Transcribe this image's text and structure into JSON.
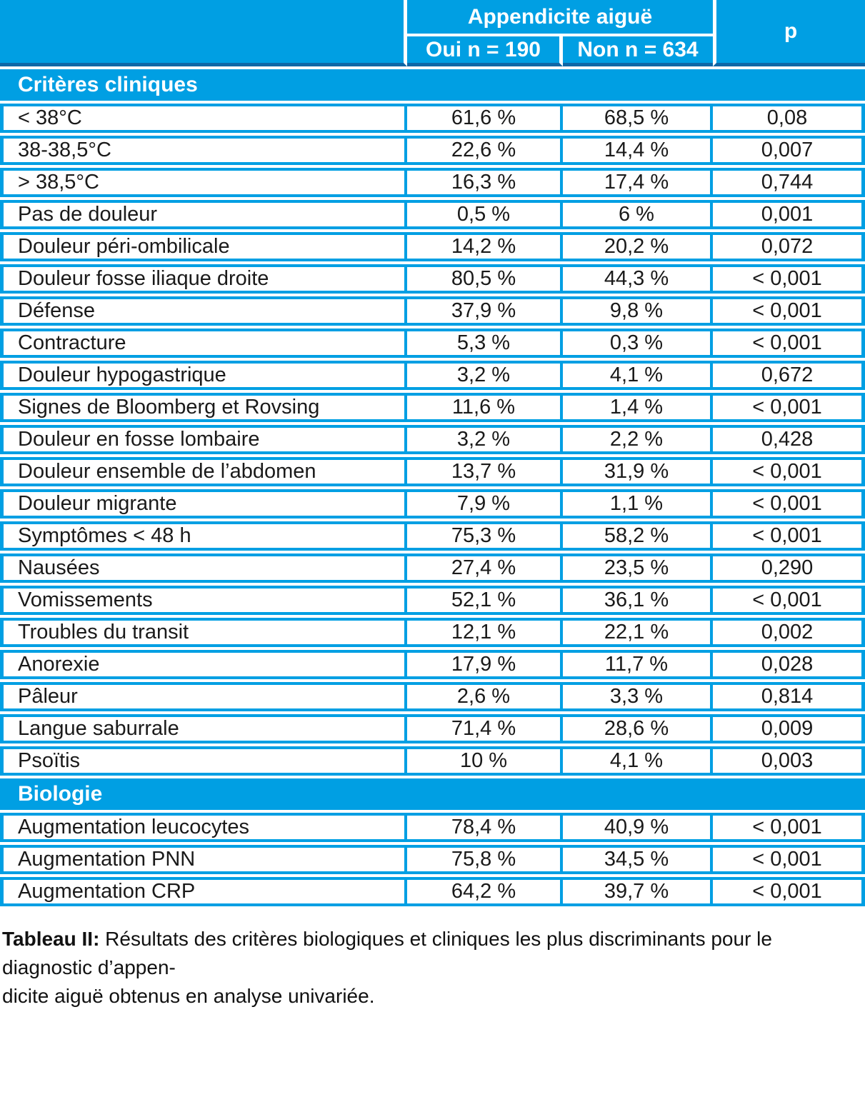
{
  "colors": {
    "primary_blue": "#009FE3",
    "header_rule": "#0F67A6",
    "text": "#1A1A1A"
  },
  "header": {
    "group_label": "Appendicite aiguë",
    "col_oui": "Oui n = 190",
    "col_non": "Non n = 634",
    "col_p": "p"
  },
  "sections": [
    {
      "label": "Critères cliniques",
      "rows": [
        {
          "label": "< 38°C",
          "oui": "61,6 %",
          "non": "68,5 %",
          "p": "0,08"
        },
        {
          "label": "38-38,5°C",
          "oui": "22,6 %",
          "non": "14,4 %",
          "p": "0,007"
        },
        {
          "label": "> 38,5°C",
          "oui": "16,3 %",
          "non": "17,4 %",
          "p": "0,744"
        },
        {
          "label": "Pas de douleur",
          "oui": "0,5 %",
          "non": "6 %",
          "p": "0,001"
        },
        {
          "label": "Douleur péri-ombilicale",
          "oui": "14,2 %",
          "non": "20,2 %",
          "p": "0,072"
        },
        {
          "label": "Douleur fosse iliaque droite",
          "oui": "80,5 %",
          "non": "44,3 %",
          "p": "< 0,001"
        },
        {
          "label": "Défense",
          "oui": "37,9 %",
          "non": "9,8 %",
          "p": "< 0,001"
        },
        {
          "label": "Contracture",
          "oui": "5,3 %",
          "non": "0,3 %",
          "p": "< 0,001"
        },
        {
          "label": "Douleur hypogastrique",
          "oui": "3,2 %",
          "non": "4,1 %",
          "p": "0,672"
        },
        {
          "label": "Signes de Bloomberg et Rovsing",
          "oui": "11,6 %",
          "non": "1,4 %",
          "p": "< 0,001"
        },
        {
          "label": "Douleur en fosse lombaire",
          "oui": "3,2 %",
          "non": "2,2 %",
          "p": "0,428"
        },
        {
          "label": "Douleur ensemble de l’abdomen",
          "oui": "13,7 %",
          "non": "31,9 %",
          "p": "< 0,001"
        },
        {
          "label": "Douleur migrante",
          "oui": "7,9 %",
          "non": "1,1 %",
          "p": "< 0,001"
        },
        {
          "label": "Symptômes < 48 h",
          "oui": "75,3 %",
          "non": "58,2 %",
          "p": "< 0,001"
        },
        {
          "label": "Nausées",
          "oui": "27,4 %",
          "non": "23,5 %",
          "p": "0,290"
        },
        {
          "label": "Vomissements",
          "oui": "52,1 %",
          "non": "36,1 %",
          "p": "< 0,001"
        },
        {
          "label": "Troubles du transit",
          "oui": "12,1 %",
          "non": "22,1 %",
          "p": "0,002"
        },
        {
          "label": "Anorexie",
          "oui": "17,9 %",
          "non": "11,7 %",
          "p": "0,028"
        },
        {
          "label": "Pâleur",
          "oui": "2,6 %",
          "non": "3,3 %",
          "p": "0,814"
        },
        {
          "label": "Langue saburrale",
          "oui": "71,4 %",
          "non": "28,6 %",
          "p": "0,009"
        },
        {
          "label": "Psoïtis",
          "oui": "10 %",
          "non": "4,1 %",
          "p": "0,003"
        }
      ]
    },
    {
      "label": "Biologie",
      "rows": [
        {
          "label": "Augmentation leucocytes",
          "oui": "78,4 %",
          "non": "40,9 %",
          "p": "< 0,001"
        },
        {
          "label": "Augmentation PNN",
          "oui": "75,8 %",
          "non": "34,5 %",
          "p": "< 0,001"
        },
        {
          "label": "Augmentation CRP",
          "oui": "64,2 %",
          "non": "39,7 %",
          "p": "< 0,001"
        }
      ]
    }
  ],
  "caption": {
    "label": "Tableau II:",
    "line1": "Résultats des critères biologiques et cliniques les plus discriminants pour le diagnostic d’appen-",
    "line2": "dicite aiguë obtenus en analyse univariée."
  }
}
